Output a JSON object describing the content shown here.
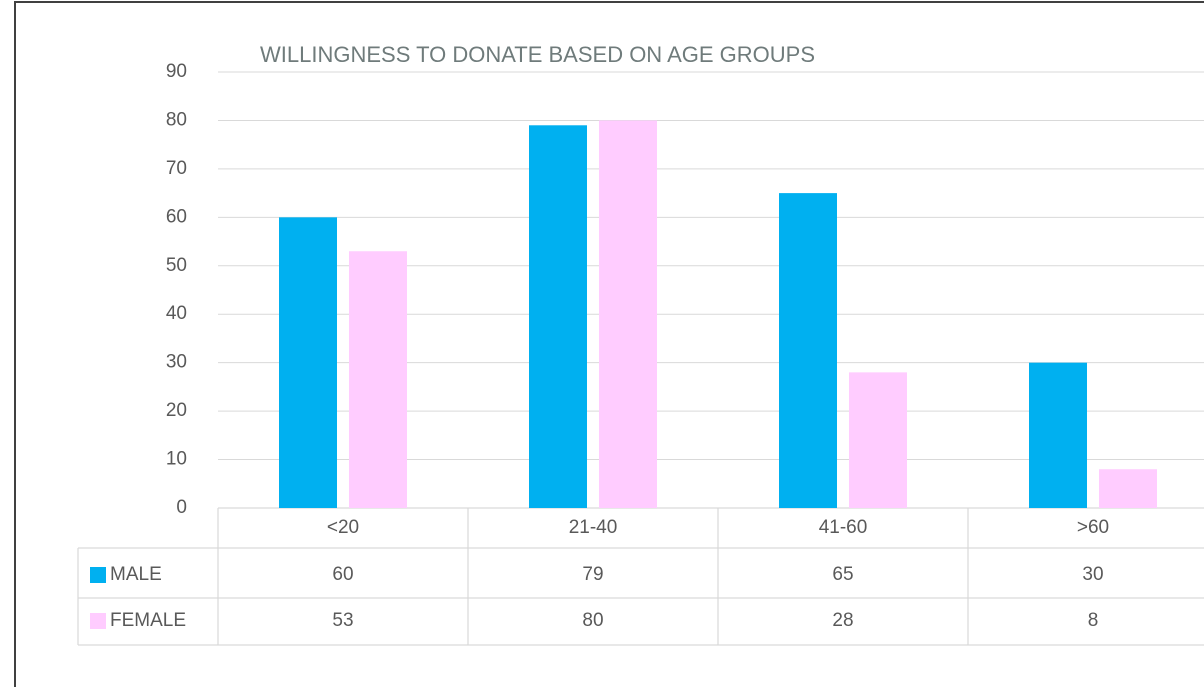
{
  "chart_data": {
    "type": "bar",
    "title": "WILLINGNESS TO DONATE BASED ON AGE GROUPS",
    "categories": [
      "<20",
      "21-40",
      "41-60",
      ">60"
    ],
    "series": [
      {
        "name": "MALE",
        "color": "#00b0f0",
        "values": [
          60,
          79,
          65,
          30
        ]
      },
      {
        "name": "FEMALE",
        "color": "#ffccff",
        "values": [
          53,
          80,
          28,
          8
        ]
      }
    ],
    "ylim": [
      0,
      90
    ],
    "yticks": [
      0,
      10,
      20,
      30,
      40,
      50,
      60,
      70,
      80,
      90
    ],
    "grid": true,
    "data_table": true
  }
}
